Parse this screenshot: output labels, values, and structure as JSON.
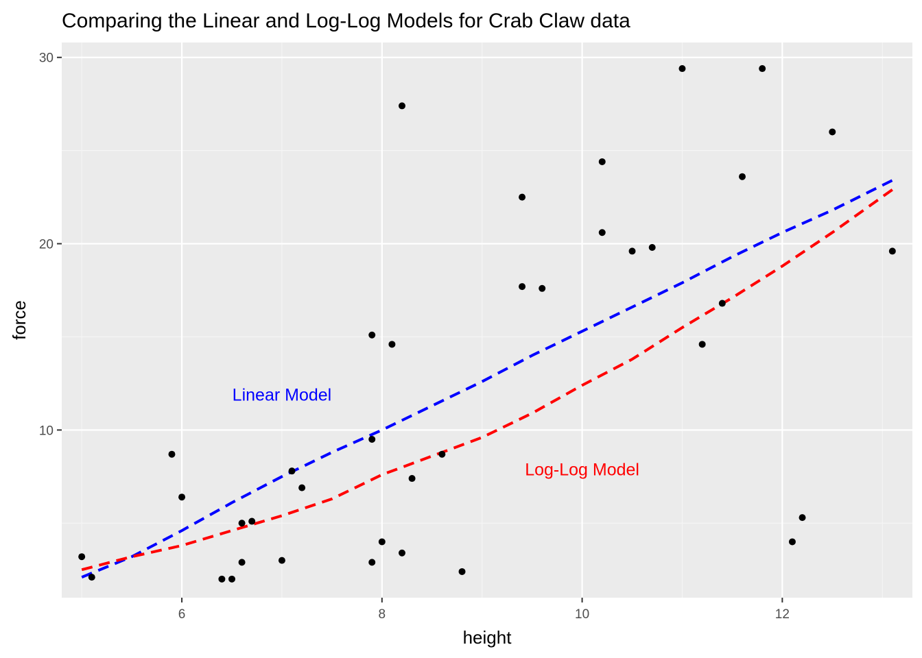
{
  "chart_data": {
    "type": "scatter",
    "title": "Comparing the Linear and Log-Log Models for Crab Claw data",
    "xlabel": "height",
    "ylabel": "force",
    "xlim": [
      4.8,
      13.3
    ],
    "ylim": [
      1.0,
      30.8
    ],
    "x_ticks": [
      6,
      8,
      10,
      12
    ],
    "y_ticks": [
      10,
      20,
      30
    ],
    "grid": true,
    "legend": "none",
    "points": [
      {
        "x": 5.0,
        "y": 3.2
      },
      {
        "x": 5.1,
        "y": 2.1
      },
      {
        "x": 5.9,
        "y": 8.7
      },
      {
        "x": 6.0,
        "y": 6.4
      },
      {
        "x": 6.4,
        "y": 2.0
      },
      {
        "x": 6.5,
        "y": 2.0
      },
      {
        "x": 6.6,
        "y": 5.0
      },
      {
        "x": 6.6,
        "y": 2.9
      },
      {
        "x": 6.7,
        "y": 5.1
      },
      {
        "x": 7.0,
        "y": 3.0
      },
      {
        "x": 7.1,
        "y": 7.8
      },
      {
        "x": 7.2,
        "y": 6.9
      },
      {
        "x": 7.9,
        "y": 15.1
      },
      {
        "x": 7.9,
        "y": 9.5
      },
      {
        "x": 7.9,
        "y": 2.9
      },
      {
        "x": 8.0,
        "y": 4.0
      },
      {
        "x": 8.1,
        "y": 14.6
      },
      {
        "x": 8.2,
        "y": 27.4
      },
      {
        "x": 8.2,
        "y": 3.4
      },
      {
        "x": 8.3,
        "y": 7.4
      },
      {
        "x": 8.6,
        "y": 8.7
      },
      {
        "x": 8.8,
        "y": 2.4
      },
      {
        "x": 9.4,
        "y": 22.5
      },
      {
        "x": 9.4,
        "y": 17.7
      },
      {
        "x": 9.6,
        "y": 17.6
      },
      {
        "x": 10.2,
        "y": 24.4
      },
      {
        "x": 10.2,
        "y": 20.6
      },
      {
        "x": 10.5,
        "y": 19.6
      },
      {
        "x": 10.7,
        "y": 19.8
      },
      {
        "x": 11.0,
        "y": 29.4
      },
      {
        "x": 11.2,
        "y": 14.6
      },
      {
        "x": 11.4,
        "y": 16.8
      },
      {
        "x": 11.6,
        "y": 23.6
      },
      {
        "x": 11.8,
        "y": 29.4
      },
      {
        "x": 12.1,
        "y": 4.0
      },
      {
        "x": 12.2,
        "y": 5.3
      },
      {
        "x": 12.5,
        "y": 26.0
      },
      {
        "x": 13.1,
        "y": 19.6
      }
    ],
    "series": [
      {
        "color": "#0000ff",
        "style": "dashed",
        "x": [
          5.0,
          5.5,
          6.0,
          6.5,
          7.0,
          7.5,
          8.0,
          8.5,
          9.0,
          9.5,
          10.0,
          10.5,
          11.0,
          11.5,
          12.0,
          12.5,
          13.1
        ],
        "y": [
          2.1,
          3.2,
          4.6,
          6.1,
          7.5,
          8.8,
          10.0,
          11.3,
          12.6,
          14.0,
          15.3,
          16.6,
          17.9,
          19.3,
          20.6,
          21.8,
          23.4
        ]
      },
      {
        "color": "#ff0000",
        "style": "dashed",
        "x": [
          5.0,
          5.5,
          6.0,
          6.5,
          7.0,
          7.5,
          8.0,
          8.5,
          9.0,
          9.5,
          10.0,
          10.5,
          11.0,
          11.5,
          12.0,
          12.5,
          13.1
        ],
        "y": [
          2.5,
          3.2,
          3.8,
          4.6,
          5.4,
          6.3,
          7.6,
          8.6,
          9.6,
          10.9,
          12.4,
          13.8,
          15.5,
          17.1,
          18.8,
          20.6,
          22.9
        ]
      }
    ],
    "annotations": [
      {
        "text": "Linear Model",
        "x": 7.0,
        "y": 11.9,
        "color": "#0000ff"
      },
      {
        "text": "Log-Log Model",
        "x": 10.0,
        "y": 7.9,
        "color": "#ff0000"
      }
    ]
  }
}
